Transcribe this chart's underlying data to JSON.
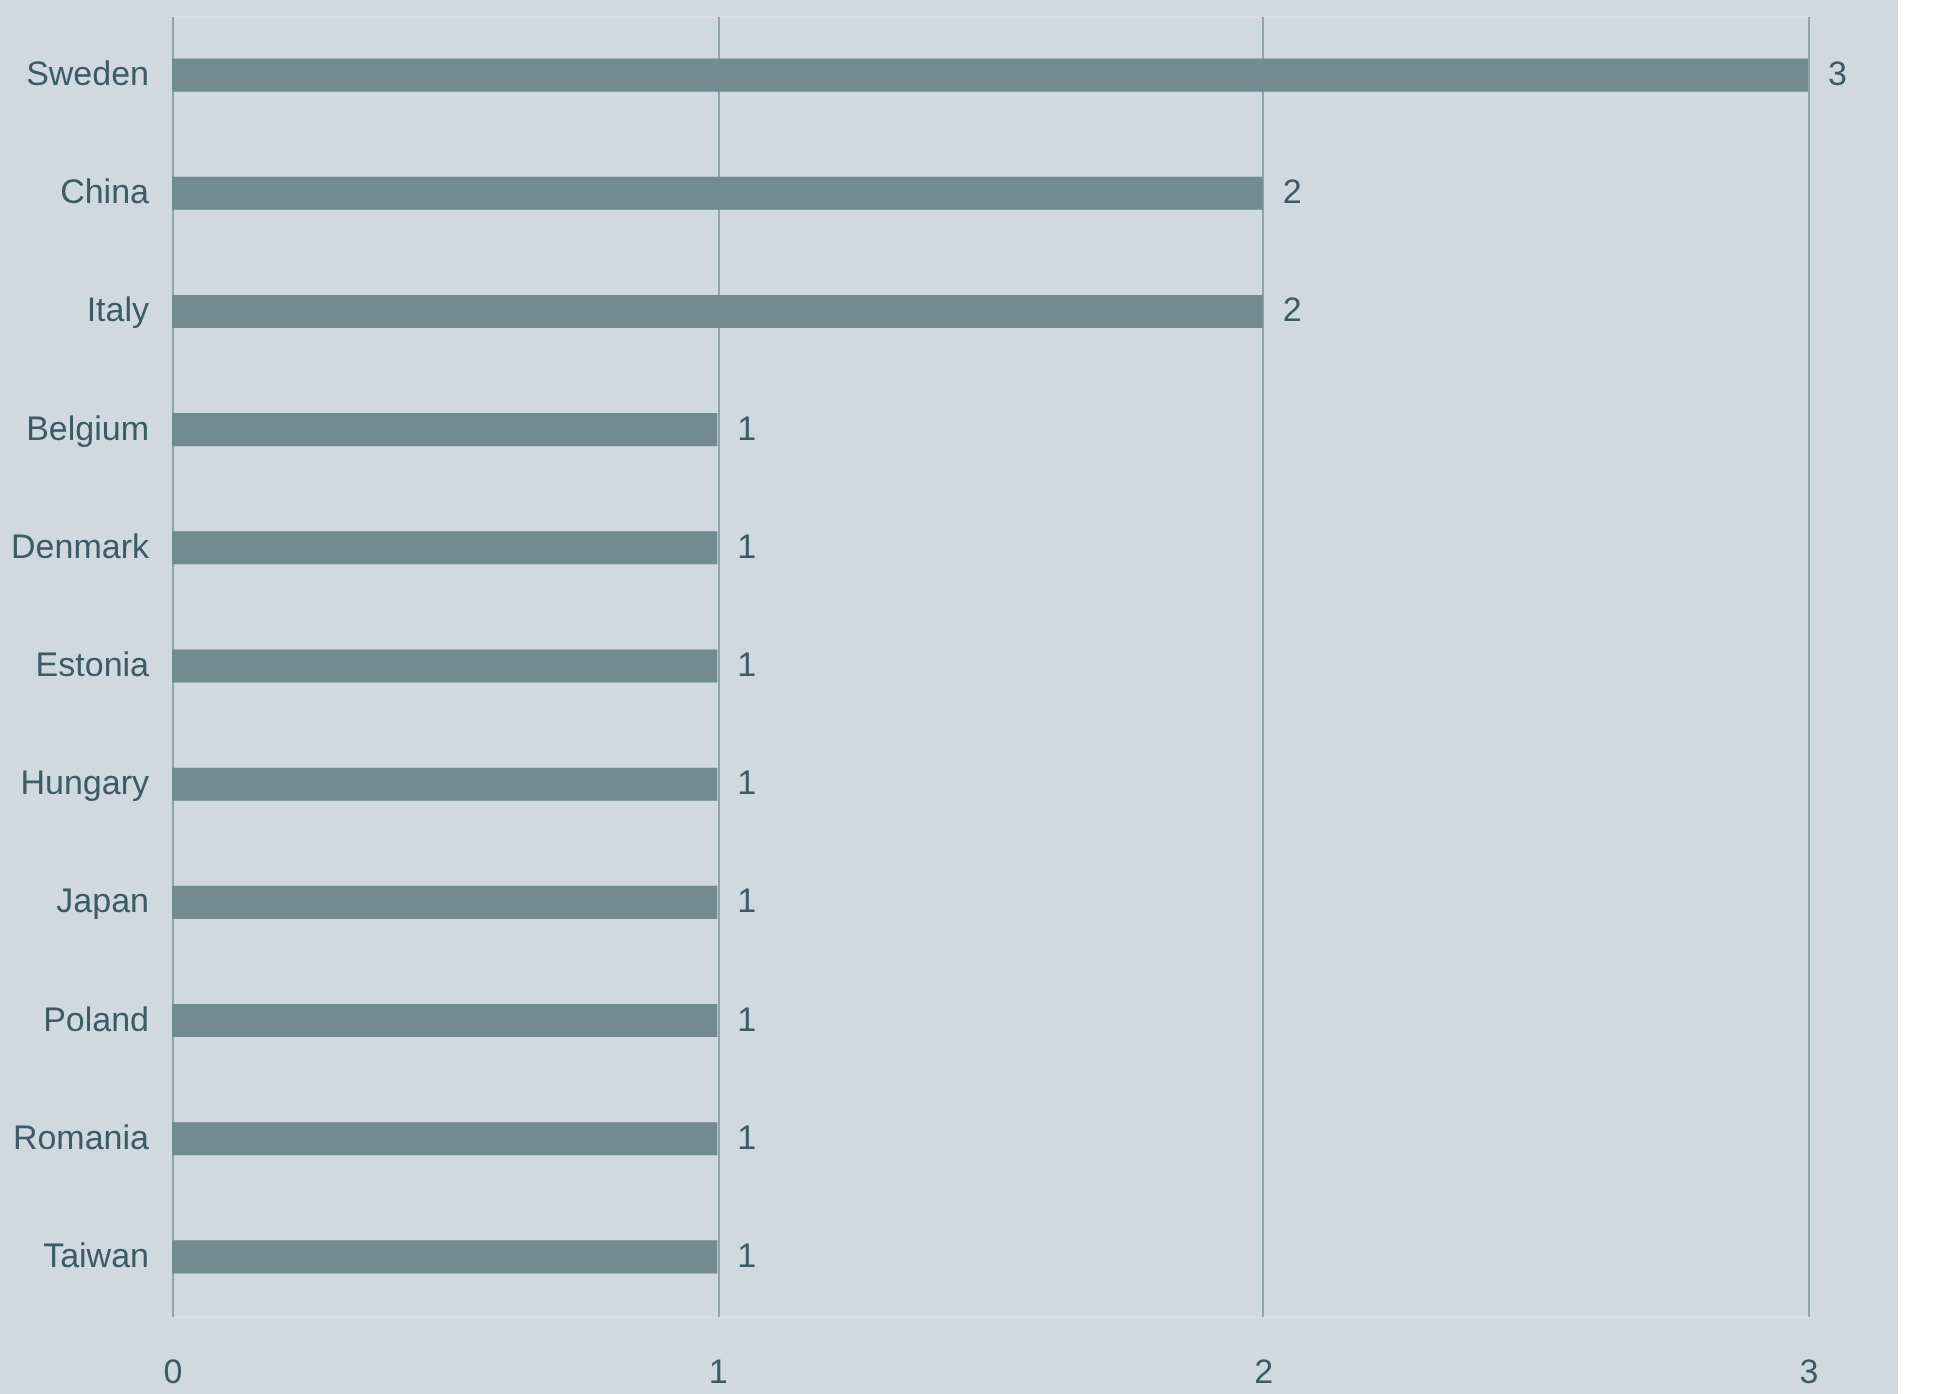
{
  "chart_data": {
    "type": "bar",
    "orientation": "horizontal",
    "categories": [
      "Sweden",
      "China",
      "Italy",
      "Belgium",
      "Denmark",
      "Estonia",
      "Hungary",
      "Japan",
      "Poland",
      "Romania",
      "Taiwan"
    ],
    "values": [
      3,
      2,
      2,
      1,
      1,
      1,
      1,
      1,
      1,
      1,
      1
    ],
    "color": "#718b91",
    "xlim": [
      0,
      3
    ],
    "xticks": [
      0,
      1,
      2,
      3
    ],
    "grid": "x",
    "data_labels": true
  }
}
